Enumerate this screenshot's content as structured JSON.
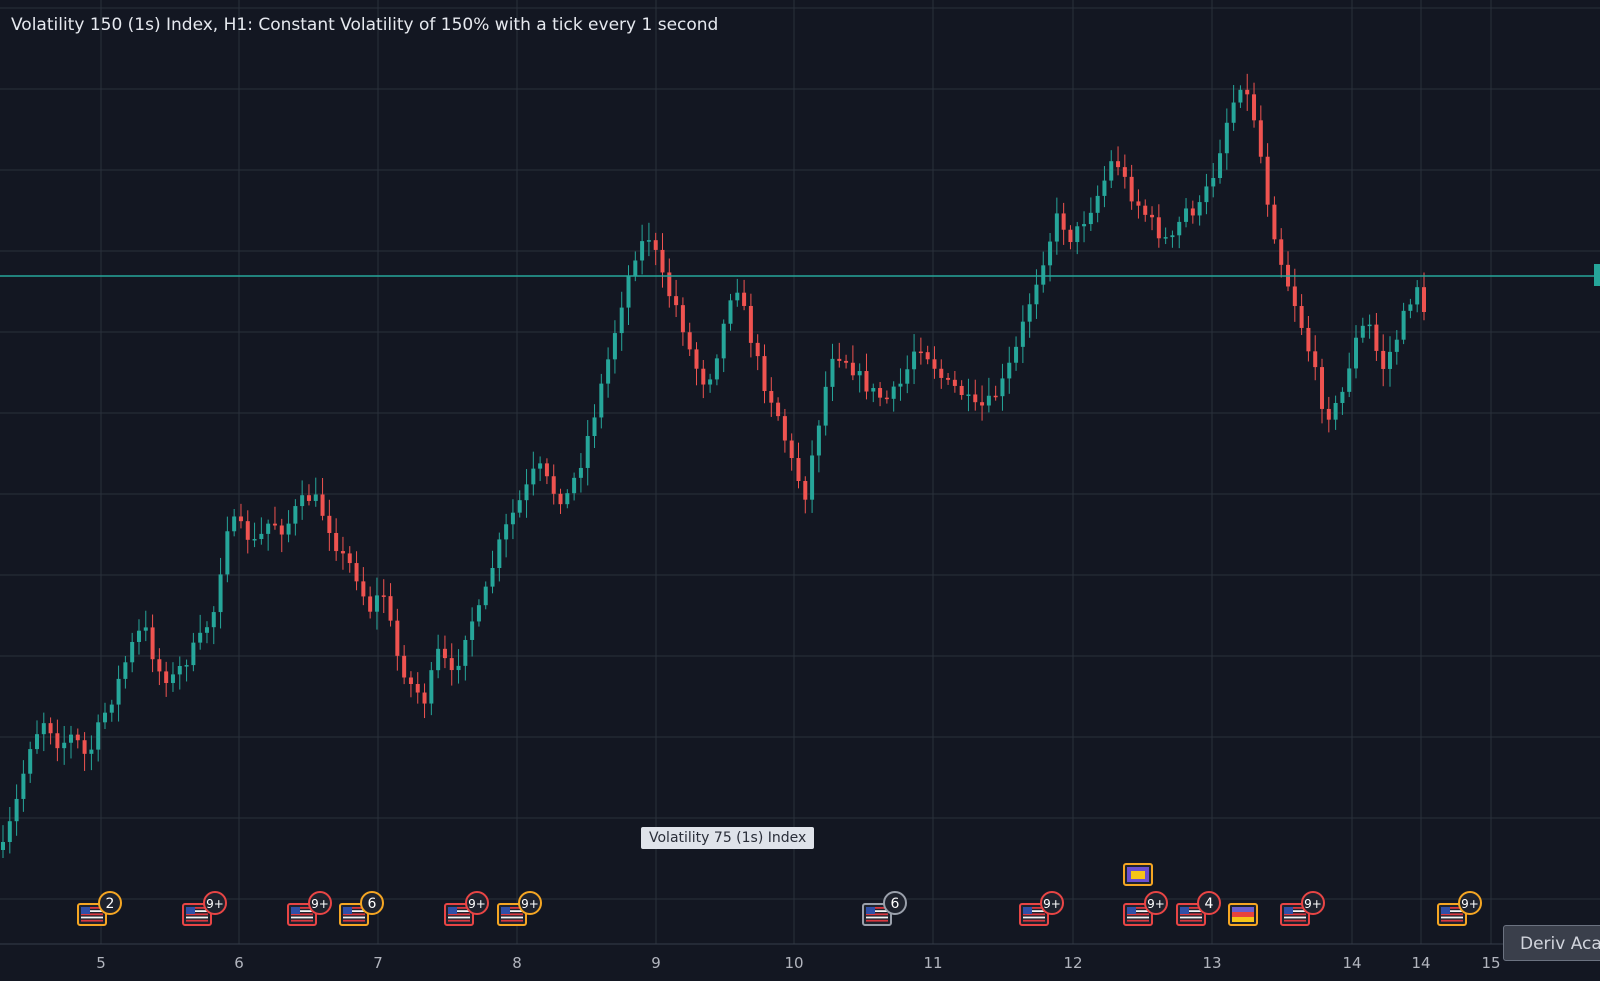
{
  "chart_title": "Volatility 150 (1s) Index, H1: Constant Volatility of 150% with a tick every 1 second",
  "tooltip": "Volatility 75 (1s) Index",
  "academy_button": "Deriv Aca",
  "colors": {
    "background": "#131722",
    "grid": "#2a303b",
    "up": "#26a69a",
    "down": "#ef5350",
    "price_line": "#26a69a",
    "axis_text": "#b2b5be"
  },
  "chart_data": {
    "type": "candlestick",
    "x_axis_labels": [
      "5",
      "6",
      "7",
      "8",
      "9",
      "10",
      "11",
      "12",
      "13",
      "14",
      "14",
      "15"
    ],
    "y_axis_labels": [],
    "grid": true,
    "current_price_line": true,
    "series_description": "Hourly candles, approximate shape reading",
    "close_path": [
      [
        0,
        850
      ],
      [
        1,
        800
      ],
      [
        2,
        740
      ],
      [
        3,
        718
      ],
      [
        4,
        745
      ],
      [
        5,
        735
      ],
      [
        6,
        760
      ],
      [
        7,
        720
      ],
      [
        8,
        690
      ],
      [
        9,
        650
      ],
      [
        10,
        625
      ],
      [
        11,
        670
      ],
      [
        12,
        680
      ],
      [
        13,
        660
      ],
      [
        14,
        640
      ],
      [
        15,
        610
      ],
      [
        16,
        520
      ],
      [
        17,
        530
      ],
      [
        18,
        545
      ],
      [
        19,
        520
      ],
      [
        20,
        530
      ],
      [
        21,
        505
      ],
      [
        22,
        495
      ],
      [
        23,
        520
      ],
      [
        24,
        555
      ],
      [
        25,
        570
      ],
      [
        26,
        610
      ],
      [
        27,
        590
      ],
      [
        28,
        655
      ],
      [
        29,
        685
      ],
      [
        30,
        700
      ],
      [
        31,
        650
      ],
      [
        32,
        680
      ],
      [
        33,
        625
      ],
      [
        34,
        610
      ],
      [
        35,
        555
      ],
      [
        36,
        520
      ],
      [
        37,
        495
      ],
      [
        38,
        465
      ],
      [
        39,
        490
      ],
      [
        40,
        500
      ],
      [
        41,
        465
      ],
      [
        42,
        415
      ],
      [
        43,
        360
      ],
      [
        44,
        300
      ],
      [
        45,
        250
      ],
      [
        46,
        235
      ],
      [
        47,
        285
      ],
      [
        48,
        310
      ],
      [
        49,
        360
      ],
      [
        50,
        385
      ],
      [
        51,
        340
      ],
      [
        52,
        275
      ],
      [
        53,
        330
      ],
      [
        54,
        380
      ],
      [
        55,
        410
      ],
      [
        56,
        460
      ],
      [
        57,
        495
      ],
      [
        58,
        420
      ],
      [
        59,
        350
      ],
      [
        60,
        360
      ],
      [
        61,
        380
      ],
      [
        62,
        395
      ],
      [
        63,
        400
      ],
      [
        64,
        380
      ],
      [
        65,
        340
      ],
      [
        66,
        360
      ],
      [
        67,
        385
      ],
      [
        68,
        390
      ],
      [
        69,
        410
      ],
      [
        70,
        405
      ],
      [
        71,
        385
      ],
      [
        72,
        350
      ],
      [
        73,
        300
      ],
      [
        74,
        255
      ],
      [
        75,
        215
      ],
      [
        76,
        240
      ],
      [
        77,
        215
      ],
      [
        78,
        190
      ],
      [
        79,
        155
      ],
      [
        80,
        190
      ],
      [
        81,
        210
      ],
      [
        82,
        230
      ],
      [
        83,
        245
      ],
      [
        84,
        210
      ],
      [
        85,
        210
      ],
      [
        86,
        175
      ],
      [
        87,
        120
      ],
      [
        88,
        80
      ],
      [
        89,
        120
      ],
      [
        90,
        210
      ],
      [
        91,
        270
      ],
      [
        92,
        310
      ],
      [
        93,
        360
      ],
      [
        94,
        415
      ],
      [
        95,
        405
      ],
      [
        96,
        345
      ],
      [
        97,
        320
      ],
      [
        98,
        370
      ],
      [
        99,
        340
      ],
      [
        100,
        300
      ],
      [
        101,
        270
      ]
    ]
  },
  "event_markers": [
    {
      "flag": "us",
      "badge": "2",
      "style": "orange"
    },
    {
      "flag": "us",
      "badge": "9+",
      "style": "red"
    },
    {
      "flag": "us",
      "badge": "9+",
      "style": "red"
    },
    {
      "flag": "us",
      "badge": "6",
      "style": "orange"
    },
    {
      "flag": "us",
      "badge": "9+",
      "style": "red"
    },
    {
      "flag": "us",
      "badge": "9+",
      "style": "orange"
    },
    {
      "flag": "us",
      "badge": "6",
      "style": "gray"
    },
    {
      "flag": "us",
      "badge": "9+",
      "style": "red"
    },
    {
      "flag": "us",
      "badge": "9+",
      "style": "red"
    },
    {
      "flag": "eu",
      "badge": "",
      "style": "orange"
    },
    {
      "flag": "us",
      "badge": "4",
      "style": "red"
    },
    {
      "flag": "de",
      "badge": "",
      "style": "orange"
    },
    {
      "flag": "us",
      "badge": "9+",
      "style": "red"
    },
    {
      "flag": "us",
      "badge": "9+",
      "style": "orange"
    }
  ]
}
